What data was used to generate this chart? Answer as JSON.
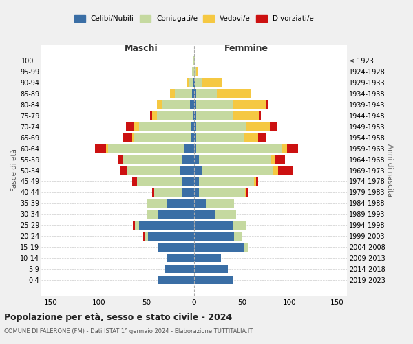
{
  "age_groups": [
    "0-4",
    "5-9",
    "10-14",
    "15-19",
    "20-24",
    "25-29",
    "30-34",
    "35-39",
    "40-44",
    "45-49",
    "50-54",
    "55-59",
    "60-64",
    "65-69",
    "70-74",
    "75-79",
    "80-84",
    "85-89",
    "90-94",
    "95-99",
    "100+"
  ],
  "birth_years": [
    "2019-2023",
    "2014-2018",
    "2009-2013",
    "2004-2008",
    "1999-2003",
    "1994-1998",
    "1989-1993",
    "1984-1988",
    "1979-1983",
    "1974-1978",
    "1969-1973",
    "1964-1968",
    "1959-1963",
    "1954-1958",
    "1949-1953",
    "1944-1948",
    "1939-1943",
    "1934-1938",
    "1929-1933",
    "1924-1928",
    "≤ 1923"
  ],
  "maschi": {
    "celibi": [
      38,
      30,
      28,
      38,
      48,
      58,
      38,
      28,
      12,
      12,
      15,
      12,
      10,
      3,
      3,
      1,
      4,
      2,
      1,
      0,
      0
    ],
    "coniugati": [
      0,
      0,
      0,
      0,
      3,
      4,
      12,
      22,
      30,
      48,
      55,
      62,
      80,
      60,
      55,
      38,
      30,
      18,
      5,
      2,
      1
    ],
    "vedovi": [
      0,
      0,
      0,
      0,
      0,
      0,
      0,
      0,
      0,
      0,
      0,
      0,
      2,
      2,
      5,
      5,
      5,
      5,
      2,
      0,
      0
    ],
    "divorziati": [
      0,
      0,
      0,
      0,
      2,
      2,
      0,
      0,
      2,
      5,
      8,
      5,
      12,
      10,
      8,
      2,
      0,
      0,
      0,
      0,
      0
    ]
  },
  "femmine": {
    "nubili": [
      40,
      35,
      28,
      52,
      42,
      40,
      22,
      12,
      5,
      5,
      8,
      5,
      2,
      2,
      2,
      2,
      2,
      2,
      1,
      0,
      0
    ],
    "coniugate": [
      0,
      0,
      0,
      5,
      8,
      15,
      22,
      30,
      48,
      58,
      75,
      75,
      90,
      50,
      52,
      38,
      38,
      22,
      8,
      2,
      1
    ],
    "vedove": [
      0,
      0,
      0,
      0,
      0,
      0,
      0,
      0,
      2,
      2,
      5,
      5,
      5,
      15,
      25,
      28,
      35,
      35,
      20,
      2,
      0
    ],
    "divorziate": [
      0,
      0,
      0,
      0,
      0,
      0,
      0,
      0,
      2,
      2,
      15,
      10,
      12,
      8,
      8,
      2,
      2,
      0,
      0,
      0,
      0
    ]
  },
  "colors": {
    "celibi": "#3a6ea5",
    "coniugati": "#c5d9a0",
    "vedovi": "#f5c842",
    "divorziati": "#cc1111"
  },
  "title": "Popolazione per età, sesso e stato civile - 2024",
  "subtitle": "COMUNE DI FALERONE (FM) - Dati ISTAT 1° gennaio 2024 - Elaborazione TUTTITALIA.IT",
  "xlabel_left": "Maschi",
  "xlabel_right": "Femmine",
  "ylabel_left": "Fasce di età",
  "ylabel_right": "Anni di nascita",
  "xlim": 160,
  "bg_color": "#f0f0f0",
  "plot_bg": "#ffffff",
  "legend_labels": [
    "Celibi/Nubili",
    "Coniugati/e",
    "Vedovi/e",
    "Divorziati/e"
  ]
}
